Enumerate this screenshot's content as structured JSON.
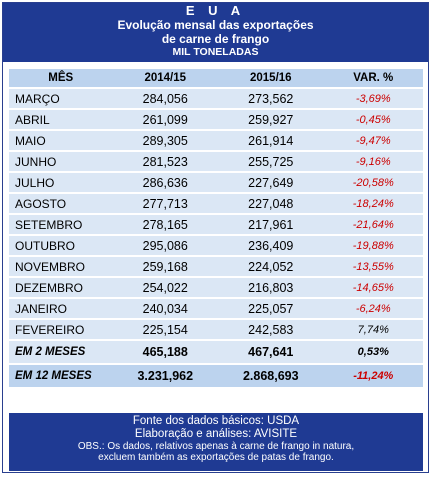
{
  "header": {
    "country": "E U A",
    "line1": "Evolução mensal das exportações",
    "line2": "de carne de frango",
    "unit": "MIL TONELADAS"
  },
  "columns": {
    "month": "MÊS",
    "year1": "2014/15",
    "year2": "2015/16",
    "var": "VAR. %"
  },
  "rows": [
    {
      "month": "MARÇO",
      "y1": "284,056",
      "y2": "273,562",
      "var": "-3,69%"
    },
    {
      "month": "ABRIL",
      "y1": "261,099",
      "y2": "259,927",
      "var": "-0,45%"
    },
    {
      "month": "MAIO",
      "y1": "289,305",
      "y2": "261,914",
      "var": "-9,47%"
    },
    {
      "month": "JUNHO",
      "y1": "281,523",
      "y2": "255,725",
      "var": "-9,16%"
    },
    {
      "month": "JULHO",
      "y1": "286,636",
      "y2": "227,649",
      "var": "-20,58%"
    },
    {
      "month": "AGOSTO",
      "y1": "277,713",
      "y2": "227,048",
      "var": "-18,24%"
    },
    {
      "month": "SETEMBRO",
      "y1": "278,165",
      "y2": "217,961",
      "var": "-21,64%"
    },
    {
      "month": "OUTUBRO",
      "y1": "295,086",
      "y2": "236,409",
      "var": "-19,88%"
    },
    {
      "month": "NOVEMBRO",
      "y1": "259,168",
      "y2": "224,052",
      "var": "-13,55%"
    },
    {
      "month": "DEZEMBRO",
      "y1": "254,022",
      "y2": "216,803",
      "var": "-14,65%"
    },
    {
      "month": "JANEIRO",
      "y1": "240,034",
      "y2": "225,057",
      "var": "-6,24%"
    },
    {
      "month": "FEVEREIRO",
      "y1": "225,154",
      "y2": "242,583",
      "var": "7,74%"
    }
  ],
  "total2": {
    "label": "EM 2 MESES",
    "y1": "465,188",
    "y2": "467,641",
    "var": "0,53%"
  },
  "total12": {
    "label": "EM 12 MESES",
    "y1": "3.231,962",
    "y2": "2.868,693",
    "var": "-11,24%"
  },
  "footer": {
    "source": "Fonte dos dados básicos: USDA",
    "elaboration": "Elaboração e análises: AVISITE",
    "obs1": "OBS.: Os dados, relativos apenas à carne de frango in natura,",
    "obs2": "excluem também  as exportações de patas de frango."
  },
  "colors": {
    "header_bg": "#1f3a93",
    "row_bg": "#dbe7f5",
    "header_row_bg": "#bcd3ee",
    "negative": "#cc0000"
  }
}
